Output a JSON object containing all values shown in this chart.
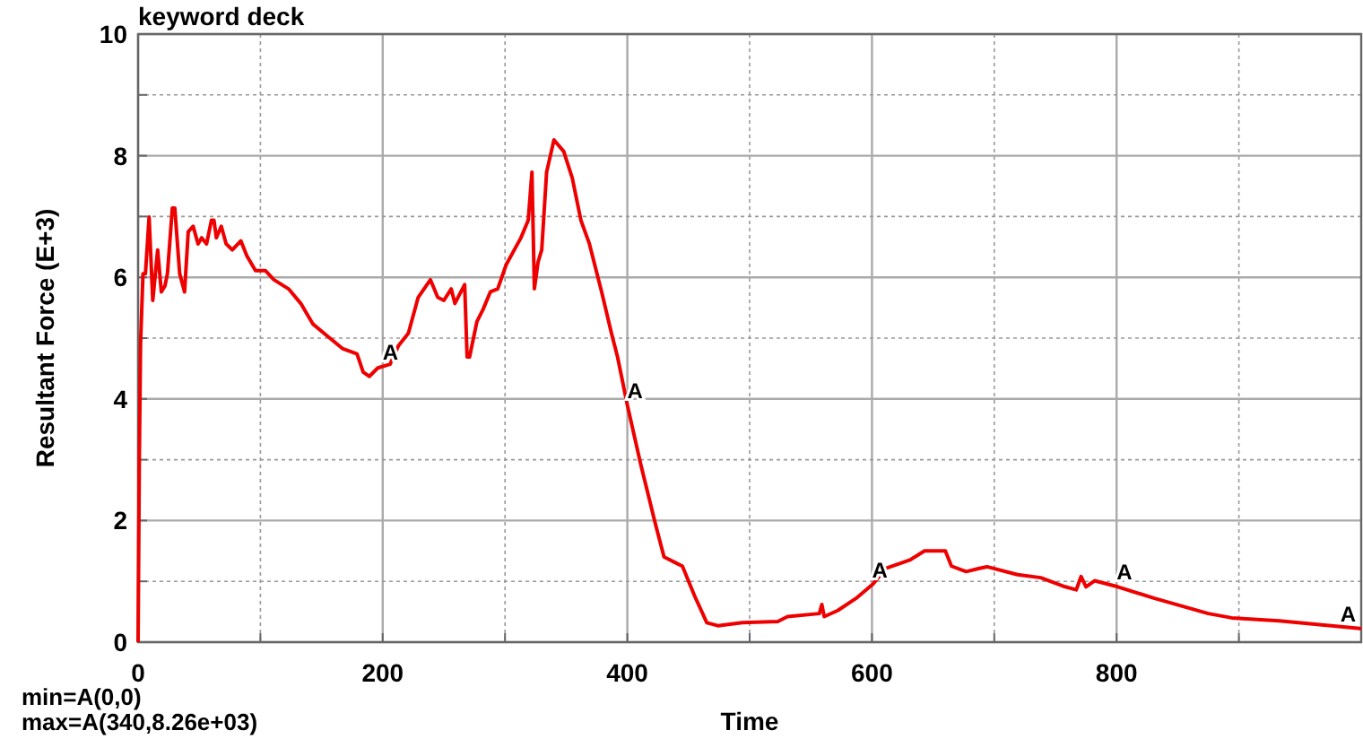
{
  "chart_data": {
    "type": "line",
    "title": "keyword deck",
    "xlabel": "Time",
    "ylabel": "Resultant Force (E+3)",
    "annotations": [
      "min=A(0,0)",
      "max=A(340,8.26e+03)"
    ],
    "xlim": [
      0,
      1000
    ],
    "ylim": [
      0,
      10
    ],
    "xticks": [
      0,
      {
        "value": 100,
        "label": null
      },
      200,
      {
        "value": 300,
        "label": null
      },
      400,
      {
        "value": 500,
        "label": null
      },
      600,
      {
        "value": 700,
        "label": null
      },
      800,
      {
        "value": 900,
        "label": null
      }
    ],
    "yticks": [
      0,
      {
        "value": 1,
        "label": null
      },
      2,
      {
        "value": 3,
        "label": null
      },
      4,
      {
        "value": 5,
        "label": null
      },
      6,
      {
        "value": 7,
        "label": null
      },
      8,
      {
        "value": 9,
        "label": null
      },
      10
    ],
    "grid": true,
    "marker": "none",
    "line_style": "solid",
    "series": [
      {
        "name": "A",
        "color": "#ee0000",
        "x": [
          0,
          1,
          2,
          4,
          6,
          9,
          12,
          16,
          19,
          22,
          24,
          28,
          30,
          34,
          38,
          41,
          45,
          49,
          52,
          56,
          60,
          62,
          64,
          68,
          72,
          77,
          84,
          89,
          96,
          104,
          111,
          123,
          133,
          143,
          155,
          167,
          179,
          184,
          189,
          196,
          206,
          213,
          221,
          229,
          239,
          245,
          250,
          256,
          259,
          267,
          269,
          271,
          277,
          282,
          288,
          294,
          301,
          313,
          319,
          322,
          324,
          327,
          330,
          334,
          340,
          348,
          355,
          362,
          369,
          379,
          387,
          392,
          400,
          411,
          423,
          430,
          440,
          445,
          455,
          465,
          474,
          494,
          523,
          531,
          557,
          559,
          561,
          572,
          587,
          601,
          611,
          631,
          643,
          660,
          665,
          677,
          687,
          694,
          719,
          738,
          758,
          767,
          771,
          775,
          782,
          801,
          831,
          875,
          894,
          933,
          997,
          1000
        ],
        "values": [
          0,
          3.0,
          4.9,
          6.06,
          6.06,
          6.99,
          5.62,
          6.45,
          5.76,
          5.86,
          6.06,
          7.14,
          7.14,
          6.06,
          5.76,
          6.75,
          6.84,
          6.55,
          6.65,
          6.55,
          6.94,
          6.94,
          6.65,
          6.84,
          6.55,
          6.45,
          6.6,
          6.35,
          6.11,
          6.11,
          5.96,
          5.81,
          5.57,
          5.23,
          5.03,
          4.83,
          4.74,
          4.44,
          4.37,
          4.51,
          4.57,
          4.88,
          5.08,
          5.67,
          5.96,
          5.67,
          5.62,
          5.81,
          5.57,
          5.88,
          4.69,
          4.69,
          5.27,
          5.47,
          5.76,
          5.81,
          6.21,
          6.65,
          6.94,
          7.73,
          5.81,
          6.25,
          6.45,
          7.73,
          8.26,
          8.07,
          7.63,
          6.94,
          6.55,
          5.76,
          5.08,
          4.69,
          3.9,
          2.92,
          1.94,
          1.4,
          1.3,
          1.25,
          0.76,
          0.32,
          0.27,
          0.32,
          0.34,
          0.42,
          0.47,
          0.62,
          0.42,
          0.52,
          0.72,
          0.96,
          1.21,
          1.35,
          1.5,
          1.5,
          1.25,
          1.16,
          1.21,
          1.24,
          1.11,
          1.06,
          0.91,
          0.86,
          1.08,
          0.91,
          1.01,
          0.91,
          0.72,
          0.47,
          0.4,
          0.35,
          0.23,
          0.22
        ]
      }
    ]
  }
}
